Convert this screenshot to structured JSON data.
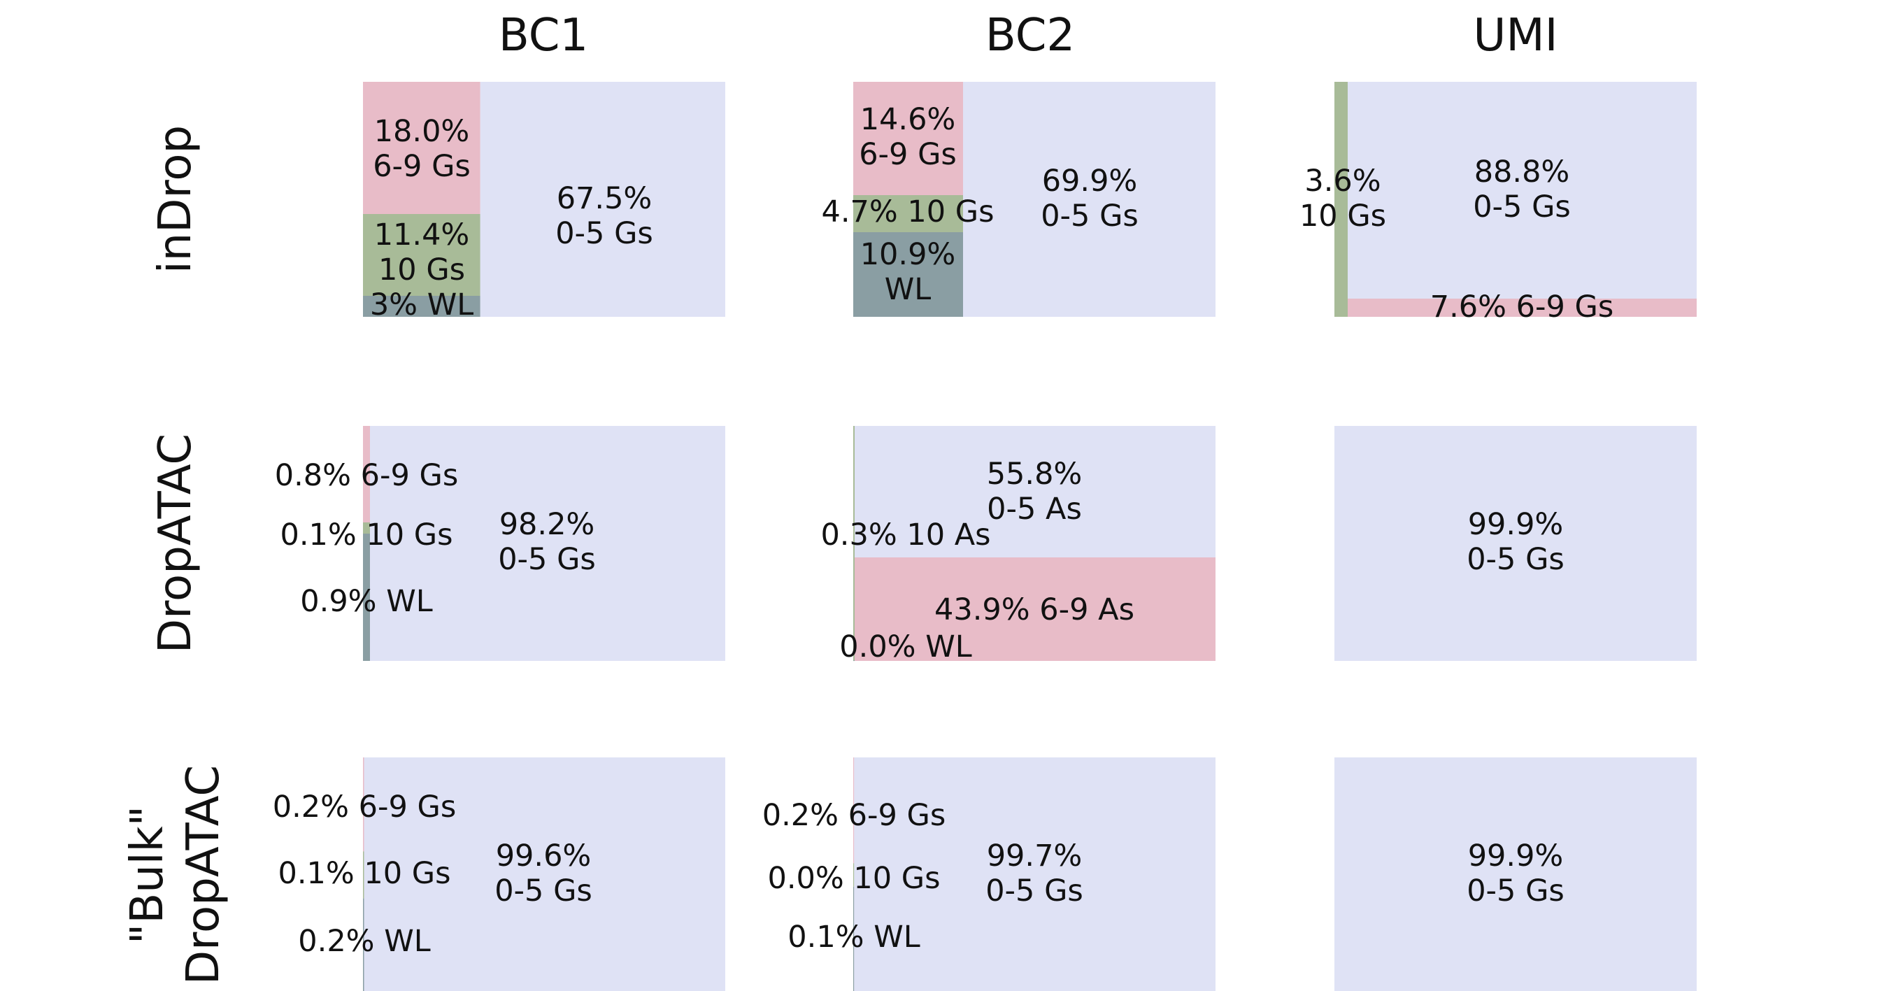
{
  "colors": {
    "0-5 Gs": "#dfe2f5",
    "0-5 As": "#dfe2f5",
    "6-9 Gs": "#e8bcc8",
    "6-9 As": "#e8bcc8",
    "10 Gs": "#a8bb98",
    "10 As": "#a8bb98",
    "WL": "#8a9ea3"
  },
  "chart_data": {
    "type": "treemap",
    "columns": [
      "BC1",
      "BC2",
      "UMI"
    ],
    "rows": [
      {
        "label_lines": [
          "inDrop"
        ]
      },
      {
        "label_lines": [
          "DropATAC"
        ]
      },
      {
        "label_lines": [
          "\"Bulk\"",
          "DropATAC"
        ]
      }
    ],
    "panels": [
      {
        "row": 0,
        "col": 0,
        "segments": [
          {
            "category": "0-5 Gs",
            "percent": 67.5,
            "label_lines": [
              "67.5%",
              "0-5 Gs"
            ]
          },
          {
            "category": "6-9 Gs",
            "percent": 18.0,
            "label_lines": [
              "18.0%",
              "6-9 Gs"
            ]
          },
          {
            "category": "10 Gs",
            "percent": 11.4,
            "label_lines": [
              "11.4%",
              "10 Gs"
            ]
          },
          {
            "category": "WL",
            "percent": 3.0,
            "label_lines": [
              "3% WL"
            ]
          }
        ]
      },
      {
        "row": 0,
        "col": 1,
        "segments": [
          {
            "category": "0-5 Gs",
            "percent": 69.9,
            "label_lines": [
              "69.9%",
              "0-5 Gs"
            ]
          },
          {
            "category": "6-9 Gs",
            "percent": 14.6,
            "label_lines": [
              "14.6%",
              "6-9 Gs"
            ]
          },
          {
            "category": "10 Gs",
            "percent": 4.7,
            "label_lines": [
              "4.7% 10 Gs"
            ]
          },
          {
            "category": "WL",
            "percent": 10.9,
            "label_lines": [
              "10.9%",
              "WL"
            ]
          }
        ]
      },
      {
        "row": 0,
        "col": 2,
        "segments": [
          {
            "category": "10 Gs",
            "percent": 3.6,
            "label_lines": [
              "3.6%",
              "10 Gs"
            ]
          },
          {
            "category": "0-5 Gs",
            "percent": 88.8,
            "label_lines": [
              "88.8%",
              "0-5 Gs"
            ]
          },
          {
            "category": "6-9 Gs",
            "percent": 7.6,
            "label_lines": [
              "7.6% 6-9 Gs"
            ]
          }
        ]
      },
      {
        "row": 1,
        "col": 0,
        "segments": [
          {
            "category": "6-9 Gs",
            "percent": 0.8,
            "label_lines": [
              "0.8% 6-9 Gs"
            ]
          },
          {
            "category": "10 Gs",
            "percent": 0.1,
            "label_lines": [
              "0.1% 10 Gs"
            ]
          },
          {
            "category": "WL",
            "percent": 0.9,
            "label_lines": [
              "0.9% WL"
            ]
          },
          {
            "category": "0-5 Gs",
            "percent": 98.2,
            "label_lines": [
              "98.2%",
              "0-5 Gs"
            ]
          }
        ]
      },
      {
        "row": 1,
        "col": 1,
        "segments": [
          {
            "category": "10 As",
            "percent": 0.3,
            "label_lines": [
              "0.3% 10 As"
            ]
          },
          {
            "category": "WL",
            "percent": 0.0,
            "label_lines": [
              "0.0% WL"
            ]
          },
          {
            "category": "0-5 As",
            "percent": 55.8,
            "label_lines": [
              "55.8%",
              "0-5 As"
            ]
          },
          {
            "category": "6-9 As",
            "percent": 43.9,
            "label_lines": [
              "43.9% 6-9 As"
            ]
          }
        ]
      },
      {
        "row": 1,
        "col": 2,
        "segments": [
          {
            "category": "0-5 Gs",
            "percent": 99.9,
            "label_lines": [
              "99.9%",
              "0-5 Gs"
            ]
          }
        ]
      },
      {
        "row": 2,
        "col": 0,
        "segments": [
          {
            "category": "6-9 Gs",
            "percent": 0.2,
            "label_lines": [
              "0.2% 6-9 Gs"
            ]
          },
          {
            "category": "10 Gs",
            "percent": 0.1,
            "label_lines": [
              "0.1% 10 Gs"
            ]
          },
          {
            "category": "WL",
            "percent": 0.2,
            "label_lines": [
              "0.2% WL"
            ]
          },
          {
            "category": "0-5 Gs",
            "percent": 99.6,
            "label_lines": [
              "99.6%",
              "0-5 Gs"
            ]
          }
        ]
      },
      {
        "row": 2,
        "col": 1,
        "segments": [
          {
            "category": "6-9 Gs",
            "percent": 0.2,
            "label_lines": [
              "0.2% 6-9 Gs"
            ]
          },
          {
            "category": "10 Gs",
            "percent": 0.0,
            "label_lines": [
              "0.0% 10 Gs"
            ]
          },
          {
            "category": "WL",
            "percent": 0.1,
            "label_lines": [
              "0.1% WL"
            ]
          },
          {
            "category": "0-5 Gs",
            "percent": 99.7,
            "label_lines": [
              "99.7%",
              "0-5 Gs"
            ]
          }
        ]
      },
      {
        "row": 2,
        "col": 2,
        "segments": [
          {
            "category": "0-5 Gs",
            "percent": 99.9,
            "label_lines": [
              "99.9%",
              "0-5 Gs"
            ]
          }
        ]
      }
    ]
  }
}
